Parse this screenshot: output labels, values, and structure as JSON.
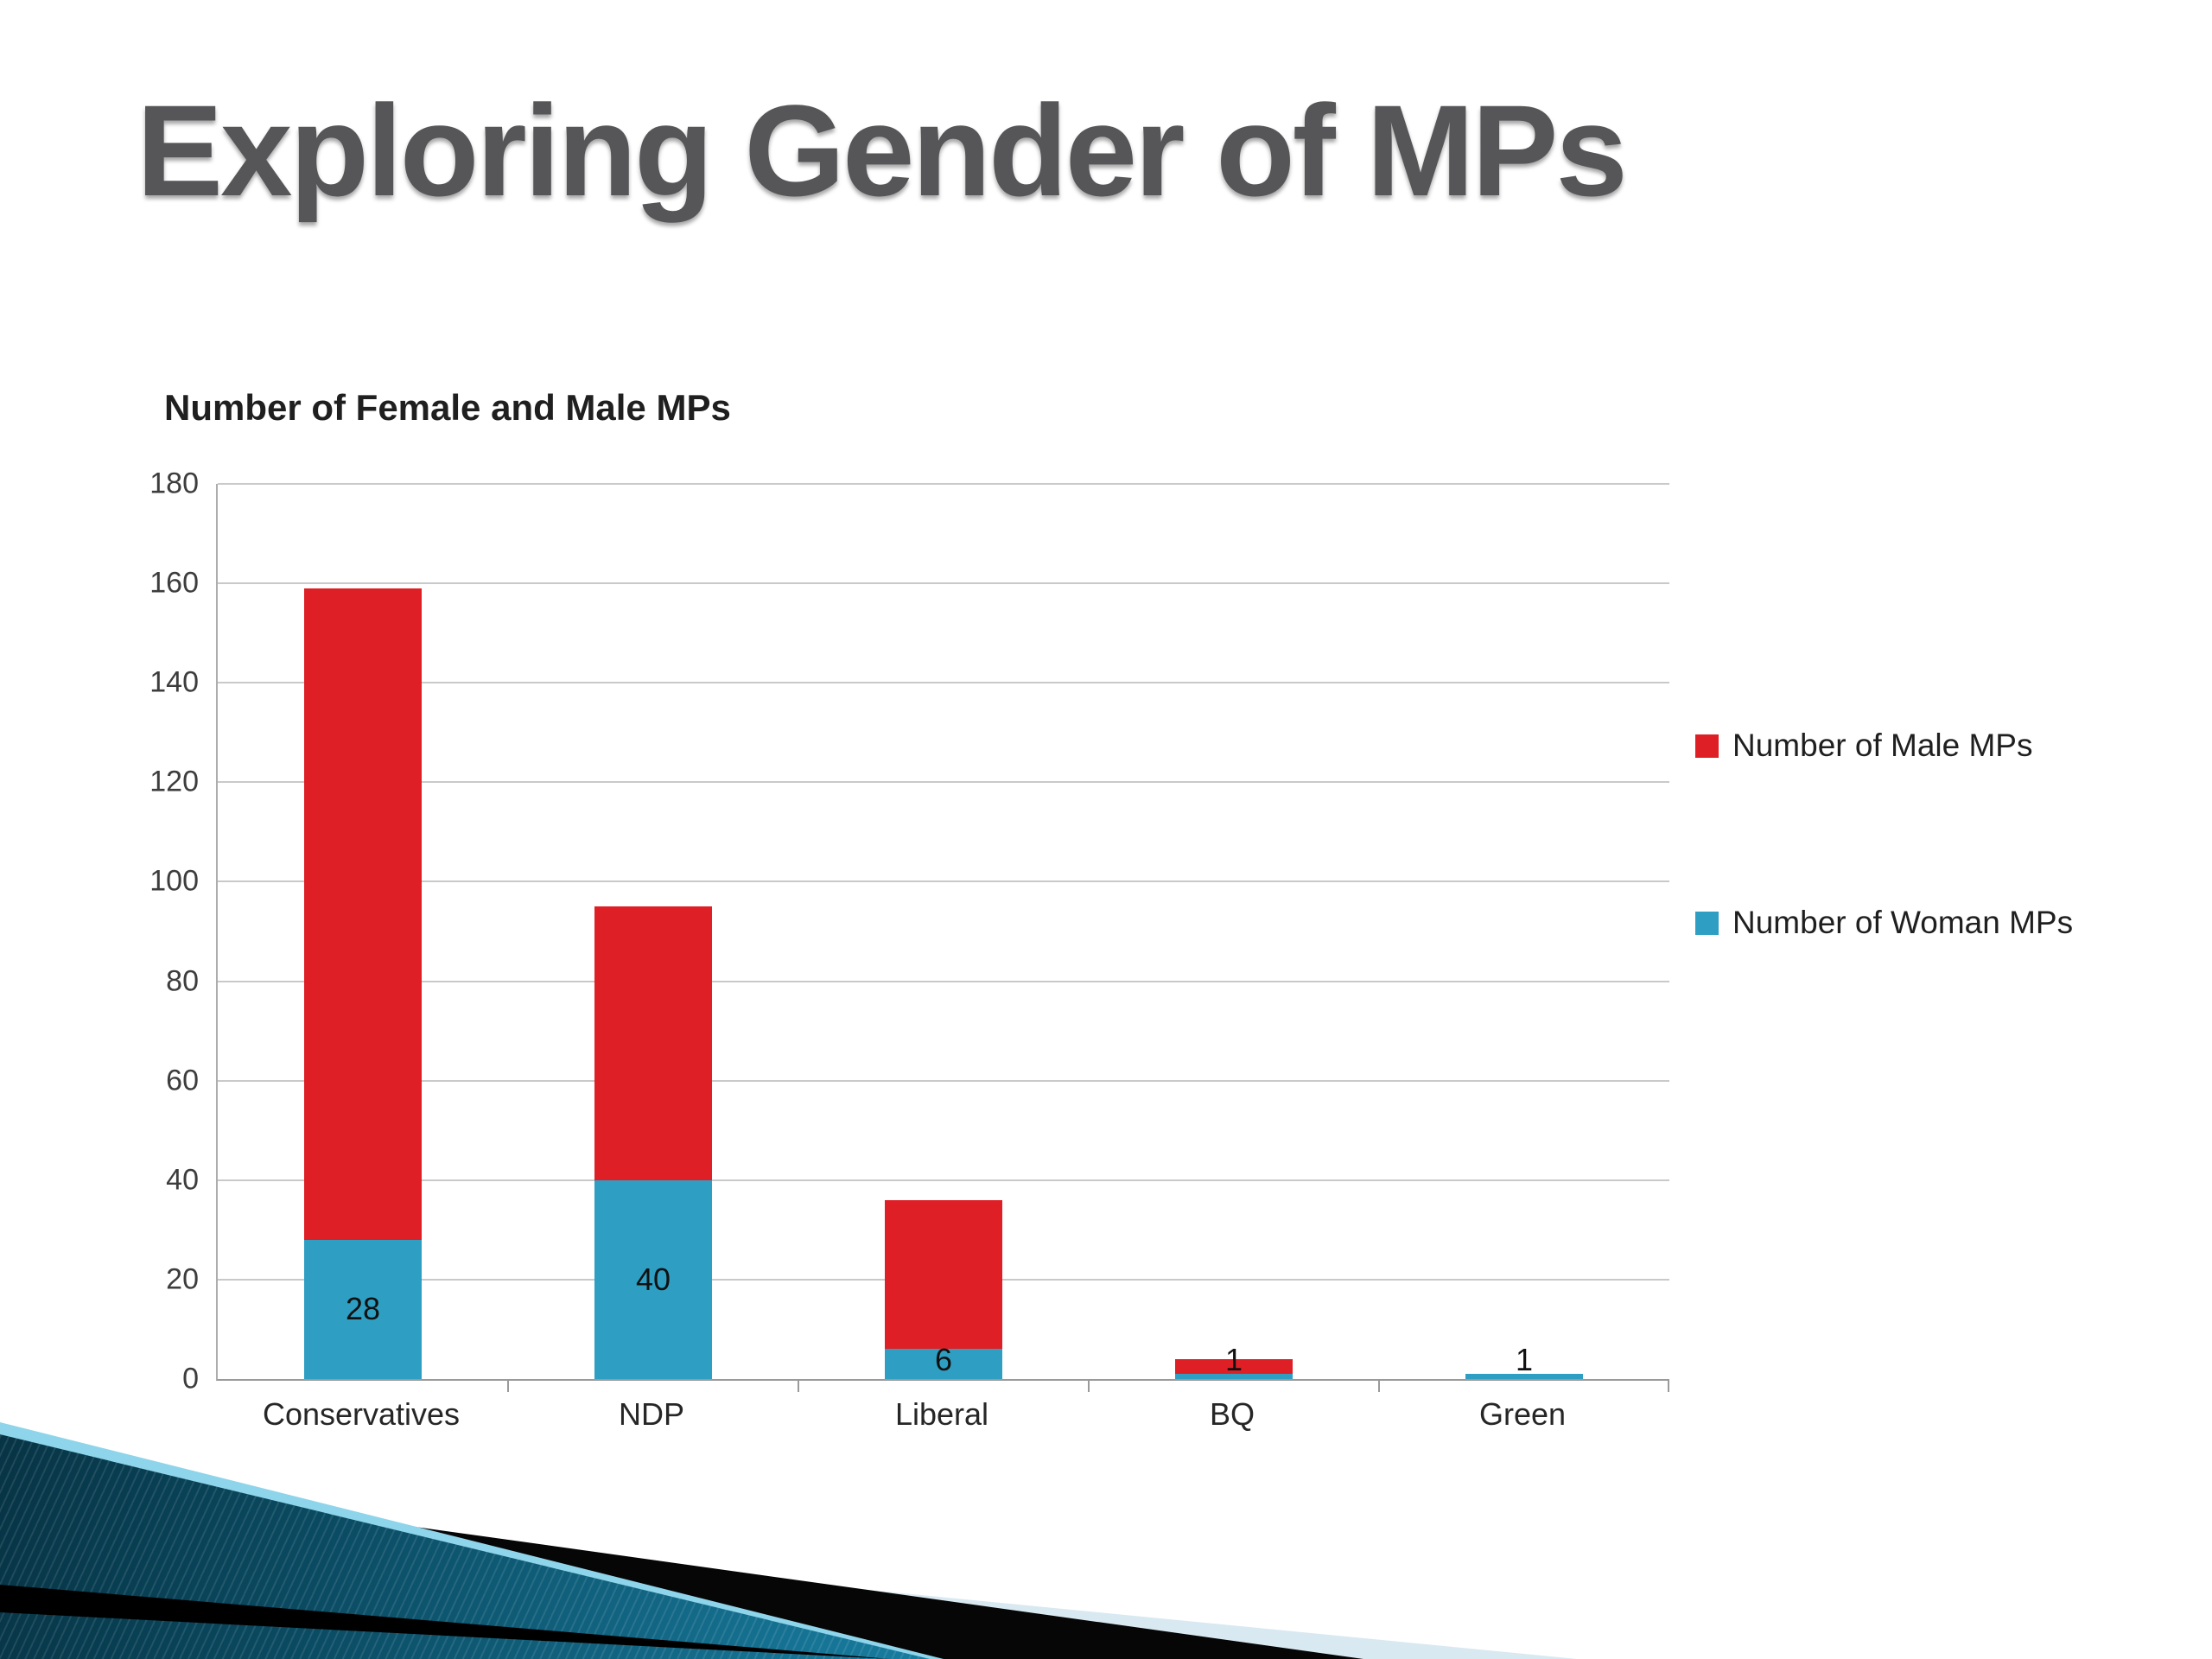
{
  "slide": {
    "title": "Exploring Gender of MPs"
  },
  "chart_data": {
    "type": "bar",
    "stacked": true,
    "title": "Number of Female and Male MPs",
    "xlabel": "",
    "ylabel": "",
    "categories": [
      "Conservatives",
      "NDP",
      "Liberal",
      "BQ",
      "Green"
    ],
    "series": [
      {
        "name": "Number of Woman MPs",
        "color": "#2E9FC3",
        "values": [
          28,
          40,
          6,
          1,
          1
        ],
        "data_labels": [
          "28",
          "40",
          "6",
          "1",
          "1"
        ]
      },
      {
        "name": "Number of Male MPs",
        "color": "#DF1F26",
        "values": [
          131,
          55,
          30,
          3,
          0
        ]
      }
    ],
    "totals": [
      159,
      95,
      36,
      4,
      1
    ],
    "ylim": [
      0,
      180
    ],
    "ytick_interval": 20,
    "yticks": [
      0,
      20,
      40,
      60,
      80,
      100,
      120,
      140,
      160,
      180
    ],
    "grid": true,
    "legend_position": "right",
    "legend": [
      {
        "label": "Number of Male MPs",
        "color": "#DF1F26"
      },
      {
        "label": "Number of Woman MPs",
        "color": "#2E9FC3"
      }
    ]
  },
  "colors": {
    "male_red": "#DF1F26",
    "female_teal": "#2E9FC3",
    "title_gray": "#565659",
    "deco_teal_dark": "#04202C",
    "deco_teal_bright": "#3CB9DC",
    "deco_pale_blue": "#D9E9F1",
    "deco_black": "#000000"
  }
}
